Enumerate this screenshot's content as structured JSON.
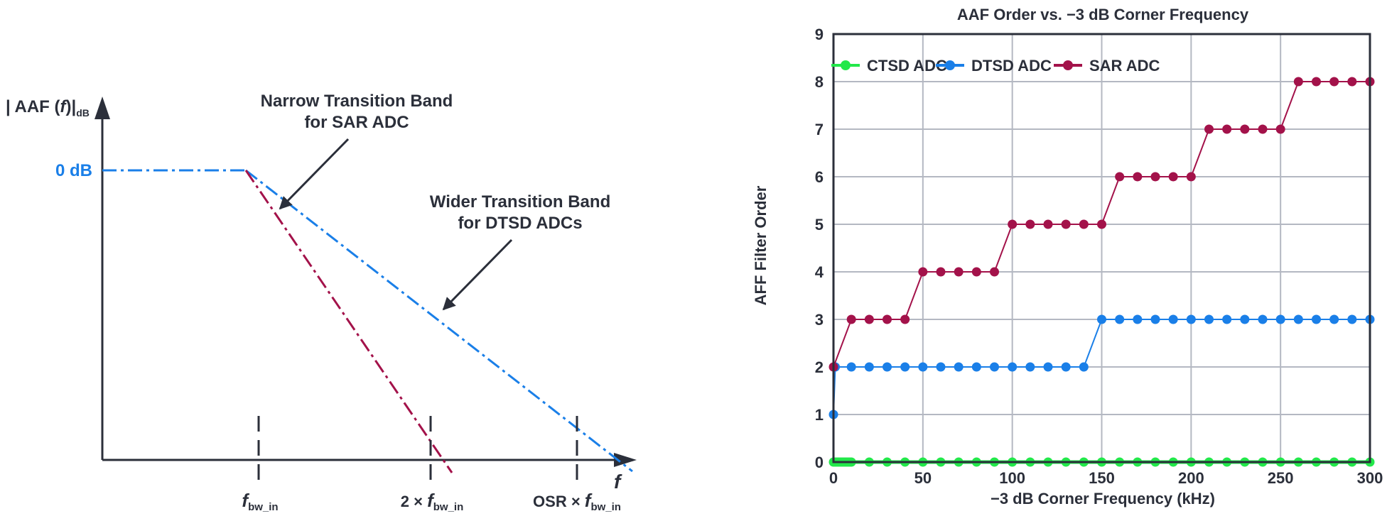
{
  "left_figure": {
    "y_axis_label": {
      "prefix": "| AAF (",
      "italic": "f",
      "close": ")|",
      "sub": "dB"
    },
    "zero_db_label": "0 dB",
    "narrow_annotation": [
      "Narrow Transition Band",
      "for SAR ADC"
    ],
    "wider_annotation": [
      "Wider Transition Band",
      "for DTSD ADCs"
    ],
    "x_axis_var": "f",
    "markers": [
      {
        "prefix": "",
        "var": "f",
        "sub": "bw_in"
      },
      {
        "prefix": "2 × ",
        "var": "f",
        "sub": "bw_in"
      },
      {
        "prefix": "OSR × ",
        "var": "f",
        "sub": "bw_in"
      }
    ],
    "colors": {
      "dtsd": "#1a7fe8",
      "sar": "#a3124a",
      "axis": "#2b2f3a"
    }
  },
  "chart_data": {
    "type": "line",
    "title": "AAF Order vs. −3 dB Corner Frequency",
    "xlabel": "−3 dB Corner Frequency (kHz)",
    "ylabel": "AFF Filter Order",
    "xlim": [
      0,
      300
    ],
    "ylim": [
      0,
      9
    ],
    "xticks": [
      0,
      50,
      100,
      150,
      200,
      250,
      300
    ],
    "yticks": [
      0,
      1,
      2,
      3,
      4,
      5,
      6,
      7,
      8,
      9
    ],
    "grid": true,
    "legend_position": "top-left",
    "series": [
      {
        "name": "CTSD ADC",
        "color": "#22e84a",
        "x": [
          0,
          1,
          2,
          3,
          4,
          5,
          6,
          7,
          8,
          9,
          10,
          20,
          30,
          40,
          50,
          60,
          70,
          80,
          90,
          100,
          110,
          120,
          130,
          140,
          150,
          160,
          170,
          180,
          190,
          200,
          210,
          220,
          230,
          240,
          250,
          260,
          270,
          280,
          290,
          300
        ],
        "y": [
          0,
          0,
          0,
          0,
          0,
          0,
          0,
          0,
          0,
          0,
          0,
          0,
          0,
          0,
          0,
          0,
          0,
          0,
          0,
          0,
          0,
          0,
          0,
          0,
          0,
          0,
          0,
          0,
          0,
          0,
          0,
          0,
          0,
          0,
          0,
          0,
          0,
          0,
          0,
          0
        ]
      },
      {
        "name": "DTSD ADC",
        "color": "#1a7fe8",
        "x": [
          0,
          1,
          10,
          20,
          30,
          40,
          50,
          60,
          70,
          80,
          90,
          100,
          110,
          120,
          130,
          140,
          150,
          160,
          170,
          180,
          190,
          200,
          210,
          220,
          230,
          240,
          250,
          260,
          270,
          280,
          290,
          300
        ],
        "y": [
          1,
          2,
          2,
          2,
          2,
          2,
          2,
          2,
          2,
          2,
          2,
          2,
          2,
          2,
          2,
          2,
          3,
          3,
          3,
          3,
          3,
          3,
          3,
          3,
          3,
          3,
          3,
          3,
          3,
          3,
          3,
          3
        ]
      },
      {
        "name": "SAR ADC",
        "color": "#a3124a",
        "x": [
          0,
          10,
          20,
          30,
          40,
          50,
          60,
          70,
          80,
          90,
          100,
          110,
          120,
          130,
          140,
          150,
          160,
          170,
          180,
          190,
          200,
          210,
          220,
          230,
          240,
          250,
          260,
          270,
          280,
          290,
          300
        ],
        "y": [
          2,
          3,
          3,
          3,
          3,
          4,
          4,
          4,
          4,
          4,
          5,
          5,
          5,
          5,
          5,
          5,
          6,
          6,
          6,
          6,
          6,
          7,
          7,
          7,
          7,
          7,
          8,
          8,
          8,
          8,
          8
        ]
      }
    ]
  }
}
